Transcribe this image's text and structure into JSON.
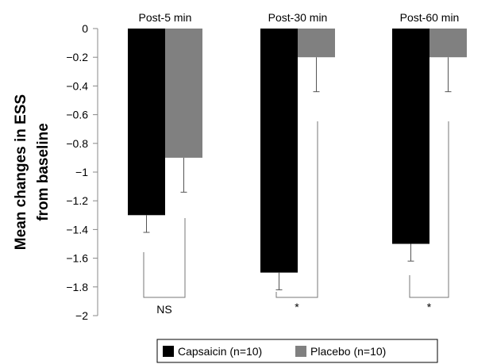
{
  "chart_data": {
    "type": "bar",
    "title": "",
    "xlabel": "",
    "ylabel_lines": [
      "Mean changes in ESS",
      "from baseline"
    ],
    "categories": [
      "Post-5 min",
      "Post-30 min",
      "Post-60 min"
    ],
    "series": [
      {
        "name": "Capsaicin (n=10)",
        "color": "#000000",
        "values": [
          -1.3,
          -1.7,
          -1.5
        ],
        "errors": [
          0.12,
          0.12,
          0.12
        ]
      },
      {
        "name": "Placebo (n=10)",
        "color": "#808080",
        "values": [
          -0.9,
          -0.2,
          -0.2
        ],
        "errors": [
          0.24,
          0.24,
          0.24
        ]
      }
    ],
    "ylim": [
      -2,
      0
    ],
    "yticks": [
      0,
      -0.2,
      -0.4,
      -0.6,
      -0.8,
      -1,
      -1.2,
      -1.4,
      -1.6,
      -1.8,
      -2
    ],
    "ytick_labels": [
      "0",
      "−0.2",
      "−0.4",
      "−0.6",
      "−0.8",
      "−1",
      "−1.2",
      "−1.4",
      "−1.6",
      "−1.8",
      "−2"
    ],
    "significance": [
      {
        "category": "Post-5 min",
        "label": "NS"
      },
      {
        "category": "Post-30 min",
        "label": "*"
      },
      {
        "category": "Post-60 min",
        "label": "*"
      }
    ],
    "grid": false,
    "legend_position": "bottom"
  }
}
